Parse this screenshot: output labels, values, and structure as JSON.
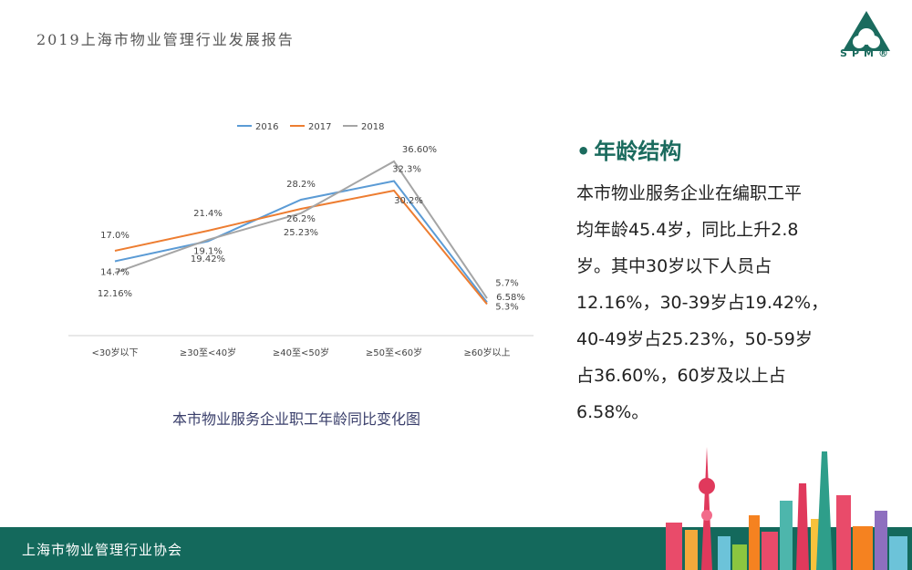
{
  "header": {
    "title": "2019上海市物业管理行业发展报告"
  },
  "logo": {
    "text": "SPM®"
  },
  "chart_caption": "本市物业服务企业职工年龄同比变化图",
  "section": {
    "heading": "年龄结构",
    "paragraphs": [
      "本市物业服务企业在编职工平",
      "均年龄45.4岁，同比上升2.8",
      "岁。其中30岁以下人员占",
      "12.16%，30-39岁占19.42%，",
      "40-49岁占25.23%，50-59岁",
      "占36.60%，60岁及以上占",
      "6.58%。"
    ]
  },
  "footer": {
    "text": "上海市物业管理行业协会"
  },
  "colors": {
    "s2016": "#5b9bd5",
    "s2017": "#ed7d31",
    "s2018": "#a5a5a5",
    "brand": "#14695c"
  },
  "chart_data": {
    "type": "line",
    "categories": [
      "<30岁以下",
      "≥30至<40岁",
      "≥40至<50岁",
      "≥50至<60岁",
      "≥60岁以上"
    ],
    "legend_position": "top",
    "grid": false,
    "ylim": [
      0,
      40
    ],
    "series": [
      {
        "name": "2016",
        "values": [
          14.7,
          19.1,
          28.2,
          32.3,
          5.7
        ],
        "labels": [
          "14.7%",
          "19.1%",
          "28.2%",
          "32.3%",
          "5.7%"
        ]
      },
      {
        "name": "2017",
        "values": [
          17.0,
          21.4,
          26.2,
          30.2,
          5.3
        ],
        "labels": [
          "17.0%",
          "21.4%",
          "26.2%",
          "30.2%",
          "5.3%"
        ]
      },
      {
        "name": "2018",
        "values": [
          12.16,
          19.42,
          25.23,
          36.6,
          6.58
        ],
        "labels": [
          "12.16%",
          "19.42%",
          "25.23%",
          "36.60%",
          "6.58%"
        ]
      }
    ]
  }
}
